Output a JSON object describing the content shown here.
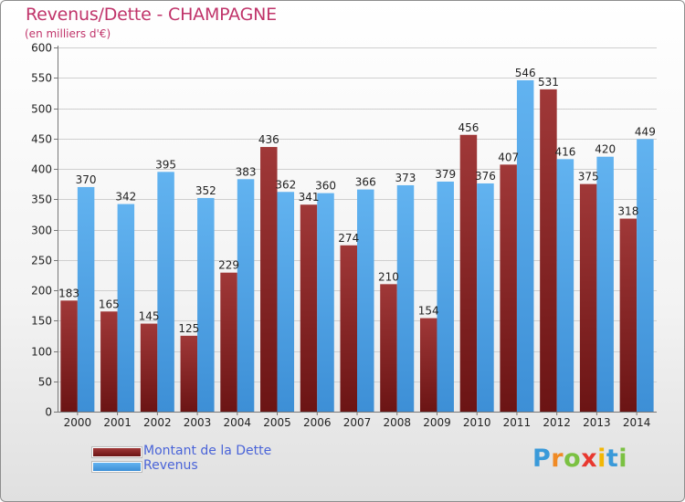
{
  "header": {
    "title": "Revenus/Dette - CHAMPAGNE",
    "subtitle": "(en milliers d'€)"
  },
  "colors": {
    "dette": "#6b1414",
    "dette_light": "#a03838",
    "revenus": "#3d8fd6",
    "revenus_light": "#62b3f0",
    "title": "#c0346a"
  },
  "legend": {
    "items": [
      {
        "label": "Montant de la Dette"
      },
      {
        "label": "Revenus"
      }
    ]
  },
  "logo": {
    "letters": [
      "P",
      "r",
      "o",
      "x",
      "i",
      "t",
      "i"
    ],
    "colors": [
      "#3a9ad9",
      "#f08a24",
      "#7bc142",
      "#e8382f",
      "#f2b705",
      "#3a9ad9",
      "#7bc142"
    ]
  },
  "chart_data": {
    "type": "bar",
    "title": "Revenus/Dette - CHAMPAGNE",
    "ylabel": "(en milliers d'€)",
    "xlabel": "",
    "ylim": [
      0,
      600
    ],
    "yticks": [
      0,
      50,
      100,
      150,
      200,
      250,
      300,
      350,
      400,
      450,
      500,
      550,
      600
    ],
    "grid": true,
    "categories": [
      "2000",
      "2001",
      "2002",
      "2003",
      "2004",
      "2005",
      "2006",
      "2007",
      "2008",
      "2009",
      "2010",
      "2011",
      "2012",
      "2013",
      "2014"
    ],
    "series": [
      {
        "name": "Montant de la Dette",
        "values": [
          183,
          165,
          145,
          125,
          229,
          436,
          341,
          274,
          210,
          154,
          456,
          407,
          531,
          375,
          318
        ]
      },
      {
        "name": "Revenus",
        "values": [
          370,
          342,
          395,
          352,
          383,
          362,
          360,
          366,
          373,
          379,
          376,
          546,
          416,
          420,
          449
        ]
      }
    ]
  }
}
